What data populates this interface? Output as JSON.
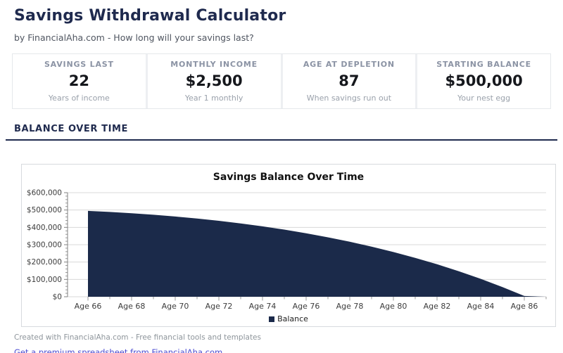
{
  "page": {
    "title": "Savings Withdrawal Calculator",
    "subtitle": "by FinancialAha.com - How long will your savings last?"
  },
  "stats": [
    {
      "label": "SAVINGS LAST",
      "value": "22",
      "sublabel": "Years of income"
    },
    {
      "label": "MONTHLY INCOME",
      "value": "$2,500",
      "sublabel": "Year 1 monthly"
    },
    {
      "label": "AGE AT DEPLETION",
      "value": "87",
      "sublabel": "When savings run out"
    },
    {
      "label": "STARTING BALANCE",
      "value": "$500,000",
      "sublabel": "Your nest egg"
    }
  ],
  "section": {
    "heading": "BALANCE OVER TIME"
  },
  "chart_data": {
    "type": "area",
    "title": "Savings Balance Over Time",
    "xlabel": "",
    "ylabel": "",
    "x": [
      66,
      67,
      68,
      69,
      70,
      71,
      72,
      73,
      74,
      75,
      76,
      77,
      78,
      79,
      80,
      81,
      82,
      83,
      84,
      85,
      86,
      87
    ],
    "series": [
      {
        "name": "Balance",
        "values": [
          495000,
          488850,
          481466,
          472757,
          462630,
          450983,
          437710,
          422700,
          405831,
          386980,
          366011,
          342785,
          317151,
          288953,
          258023,
          224185,
          187253,
          147030,
          103309,
          55869,
          4479,
          0
        ]
      }
    ],
    "ylim": [
      0,
      600000
    ],
    "y_ticks": [
      0,
      100000,
      200000,
      300000,
      400000,
      500000,
      600000
    ],
    "y_tick_labels": [
      "$0",
      "$100,000",
      "$200,000",
      "$300,000",
      "$400,000",
      "$500,000",
      "$600,000"
    ],
    "y_minor_step": 20000,
    "x_major_ticks": [
      66,
      68,
      70,
      72,
      74,
      76,
      78,
      80,
      82,
      84,
      86
    ],
    "x_tick_labels": [
      "Age 66",
      "Age 68",
      "Age 70",
      "Age 72",
      "Age 74",
      "Age 76",
      "Age 78",
      "Age 80",
      "Age 82",
      "Age 84",
      "Age 86"
    ],
    "x_minor_step": 1,
    "grid": true,
    "legend_position": "bottom",
    "colors": {
      "area": "#1b2a4a",
      "grid": "#d8d8d8",
      "axis": "#808080",
      "tick_label": "#3c3c3c"
    }
  },
  "footer": {
    "credit": "Created with FinancialAha.com - Free financial tools and templates",
    "link": "Get a premium spreadsheet from FinancialAha.com"
  }
}
